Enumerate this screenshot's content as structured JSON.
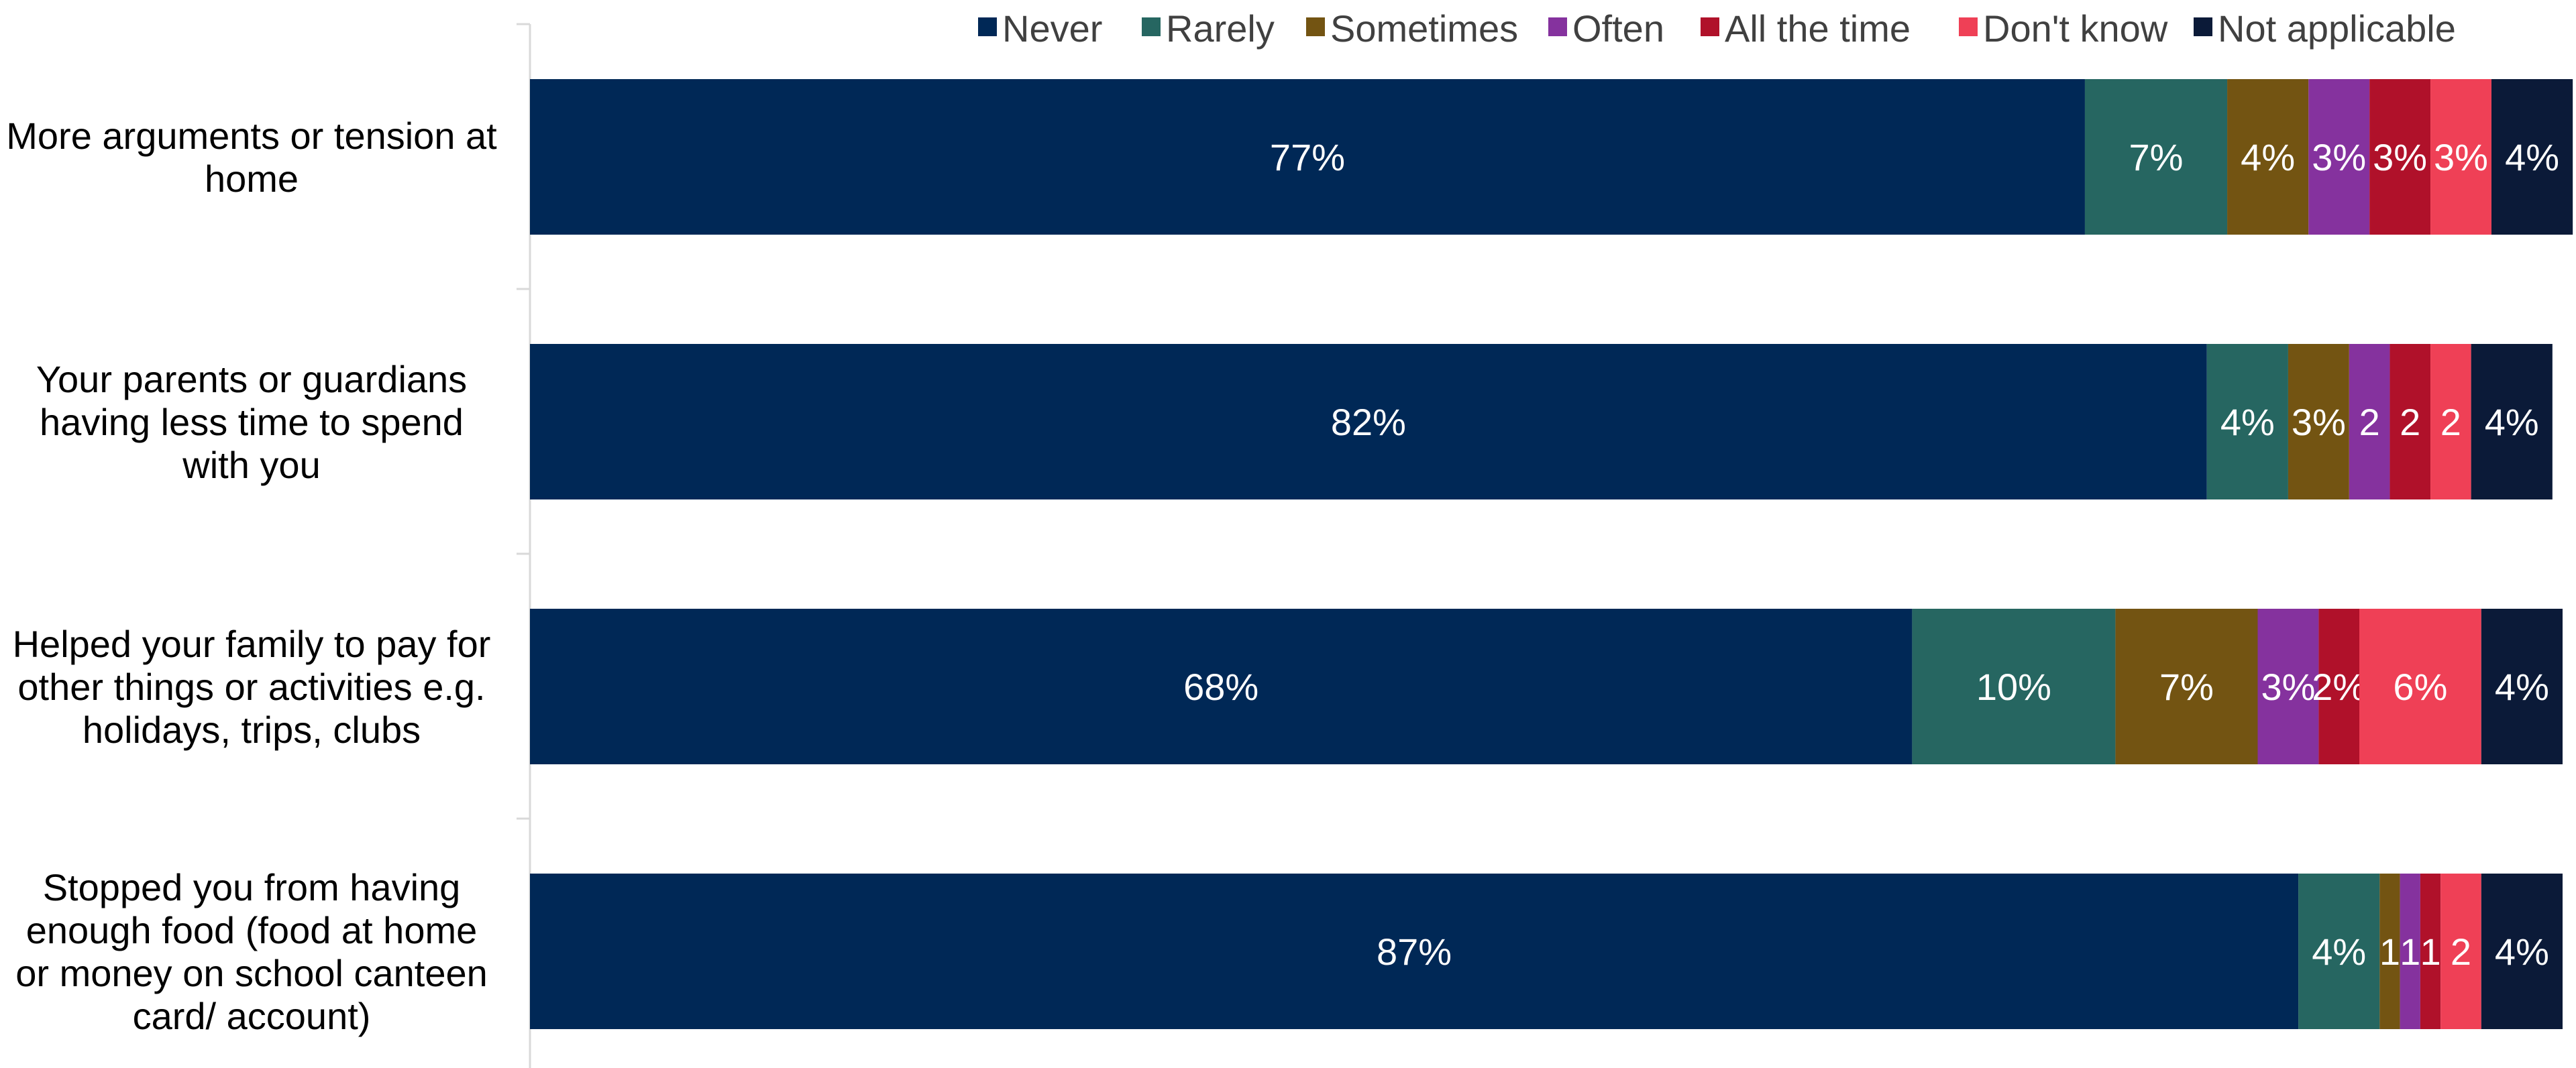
{
  "chart_data": {
    "type": "bar",
    "orientation": "horizontal",
    "stacked": true,
    "grid": false,
    "legend_position": "top",
    "xlim": [
      0,
      100
    ],
    "categories": [
      [
        "More arguments or tension at",
        "home"
      ],
      [
        "Your parents or guardians",
        "having less time to spend",
        "with you"
      ],
      [
        "Helped your family to pay for",
        "other things or activities e.g.",
        "holidays, trips, clubs"
      ],
      [
        "Stopped you from having",
        "enough food (food at home",
        "or money on school canteen",
        "card/ account)"
      ]
    ],
    "series": [
      {
        "name": "Never",
        "color": "#002856",
        "values": [
          76.5,
          82.5,
          68,
          87
        ],
        "labels": [
          "77%",
          "82%",
          "68%",
          "87%"
        ]
      },
      {
        "name": "Rarely",
        "color": "#266661",
        "values": [
          7,
          4,
          10,
          4
        ],
        "labels": [
          "7%",
          "4%",
          "10%",
          "4%"
        ]
      },
      {
        "name": "Sometimes",
        "color": "#735412",
        "values": [
          4,
          3,
          7,
          1
        ],
        "labels": [
          "4%",
          "3%",
          "7%",
          "1"
        ]
      },
      {
        "name": "Often",
        "color": "#85329E",
        "values": [
          3,
          2,
          3,
          1
        ],
        "labels": [
          "3%",
          "2",
          "3%",
          "1"
        ]
      },
      {
        "name": "All the time",
        "color": "#B0112A",
        "values": [
          3,
          2,
          2,
          1
        ],
        "labels": [
          "3%",
          "2",
          "2%",
          "1"
        ]
      },
      {
        "name": "Don't know",
        "color": "#EF4056",
        "values": [
          3,
          2,
          6,
          2
        ],
        "labels": [
          "3%",
          "2",
          "6%",
          "2"
        ]
      },
      {
        "name": "Not applicable",
        "color": "#0B1A38",
        "values": [
          4,
          4,
          4,
          4
        ],
        "labels": [
          "4%",
          "4%",
          "4%",
          "4%"
        ]
      }
    ]
  }
}
